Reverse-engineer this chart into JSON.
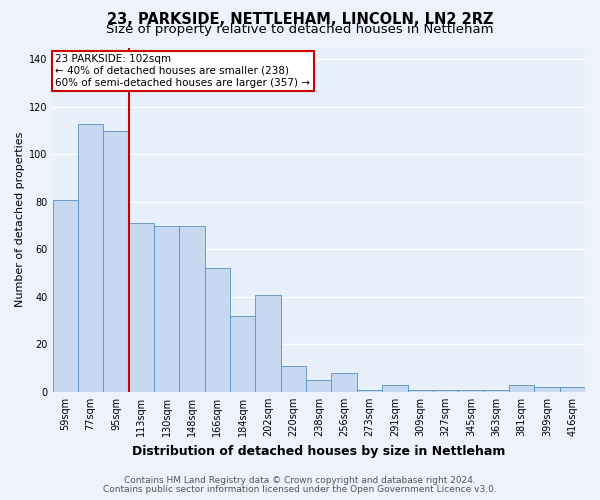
{
  "title": "23, PARKSIDE, NETTLEHAM, LINCOLN, LN2 2RZ",
  "subtitle": "Size of property relative to detached houses in Nettleham",
  "xlabel": "Distribution of detached houses by size in Nettleham",
  "ylabel": "Number of detached properties",
  "categories": [
    "59sqm",
    "77sqm",
    "95sqm",
    "113sqm",
    "130sqm",
    "148sqm",
    "166sqm",
    "184sqm",
    "202sqm",
    "220sqm",
    "238sqm",
    "256sqm",
    "273sqm",
    "291sqm",
    "309sqm",
    "327sqm",
    "345sqm",
    "363sqm",
    "381sqm",
    "399sqm",
    "416sqm"
  ],
  "values": [
    81,
    113,
    110,
    71,
    70,
    70,
    52,
    32,
    41,
    11,
    5,
    8,
    1,
    3,
    1,
    1,
    1,
    1,
    3,
    2,
    2
  ],
  "bar_color": "#c6d9f0",
  "bar_edge_color": "#5a8fc3",
  "background_color": "#e8f0fb",
  "fig_background_color": "#eef2fa",
  "grid_color": "#ffffff",
  "annotation_text": "23 PARKSIDE: 102sqm\n← 40% of detached houses are smaller (238)\n60% of semi-detached houses are larger (357) →",
  "annotation_box_color": "#ffffff",
  "annotation_box_edge": "#cc0000",
  "vline_x_index": 2,
  "vline_color": "#cc0000",
  "ylim": [
    0,
    145
  ],
  "yticks": [
    0,
    20,
    40,
    60,
    80,
    100,
    120,
    140
  ],
  "footer1": "Contains HM Land Registry data © Crown copyright and database right 2024.",
  "footer2": "Contains public sector information licensed under the Open Government Licence v3.0.",
  "title_fontsize": 10.5,
  "subtitle_fontsize": 9.5,
  "xlabel_fontsize": 9,
  "ylabel_fontsize": 8,
  "tick_fontsize": 7,
  "annotation_fontsize": 7.5,
  "footer_fontsize": 6.5
}
